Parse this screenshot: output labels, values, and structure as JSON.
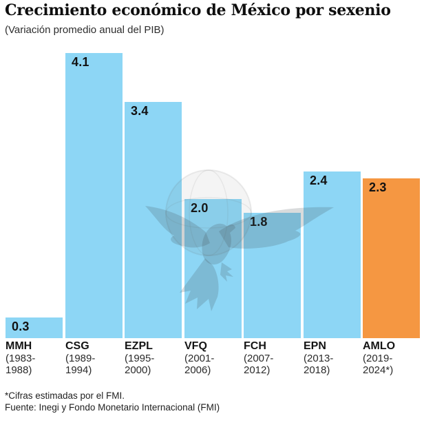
{
  "header": {
    "title": "Crecimiento económico de México por sexenio",
    "subtitle": "(Variación promedio anual del PIB)"
  },
  "chart_data": {
    "type": "bar",
    "title": "Crecimiento económico de México por sexenio",
    "subtitle": "(Variación promedio anual del PIB)",
    "xlabel": "",
    "ylabel": "",
    "ylim": [
      0,
      4.35
    ],
    "grid": false,
    "legend": "none",
    "categories": [
      "MMH",
      "CSG",
      "EZPL",
      "VFQ",
      "FCH",
      "EPN",
      "AMLO"
    ],
    "terms": [
      "1983-1988",
      "1989-1994",
      "1995-2000",
      "2001-2006",
      "2007-2012",
      "2013-2018",
      "2019-2024*"
    ],
    "values": [
      0.3,
      4.1,
      3.4,
      2.0,
      1.8,
      2.4,
      2.3
    ],
    "value_labels": [
      "0.3",
      "4.1",
      "3.4",
      "2.0",
      "1.8",
      "2.4",
      "2.3"
    ],
    "highlight_index": 6,
    "colors": {
      "bar_default": "#8DD6F5",
      "bar_highlight": "#F59742",
      "value_label": "#121212"
    }
  },
  "watermark": {
    "name": "eagle-globe-press-logo"
  },
  "footer": {
    "note": "*Cifras estimadas por el FMI.",
    "source": "Fuente: Inegi y Fondo Monetario Internacional (FMI)"
  }
}
